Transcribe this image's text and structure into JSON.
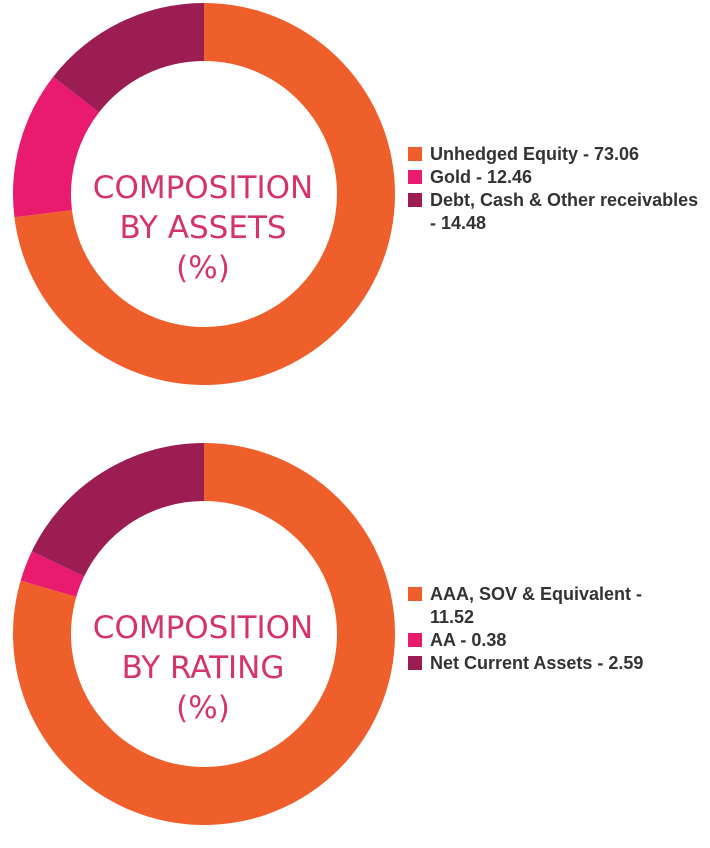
{
  "colors": {
    "orange": "#ee5f2b",
    "pink": "#e81b6e",
    "plum": "#9b1d54",
    "title": "#d6336c"
  },
  "chart_data": [
    {
      "type": "pie",
      "title_lines": [
        "COMPOSITION",
        "BY ASSETS",
        "(%)"
      ],
      "categories": [
        "Unhedged Equity",
        "Gold",
        "Debt, Cash & Other receivables"
      ],
      "values": [
        73.06,
        12.46,
        14.48
      ],
      "legend_labels": [
        "Unhedged Equity - 73.06",
        "Gold - 12.46",
        "Debt, Cash & Other receivables - 14.48"
      ],
      "colors": [
        "#ee5f2b",
        "#e81b6e",
        "#9b1d54"
      ],
      "legend_position": "right"
    },
    {
      "type": "pie",
      "title_lines": [
        "COMPOSITION",
        "BY RATING",
        "(%)"
      ],
      "categories": [
        "AAA, SOV & Equivalent",
        "AA",
        "Net Current Assets"
      ],
      "values": [
        11.52,
        0.38,
        2.59
      ],
      "legend_labels": [
        "AAA, SOV & Equivalent - 11.52",
        "AA - 0.38",
        "Net Current Assets - 2.59"
      ],
      "colors": [
        "#ee5f2b",
        "#e81b6e",
        "#9b1d54"
      ],
      "legend_position": "right"
    }
  ]
}
